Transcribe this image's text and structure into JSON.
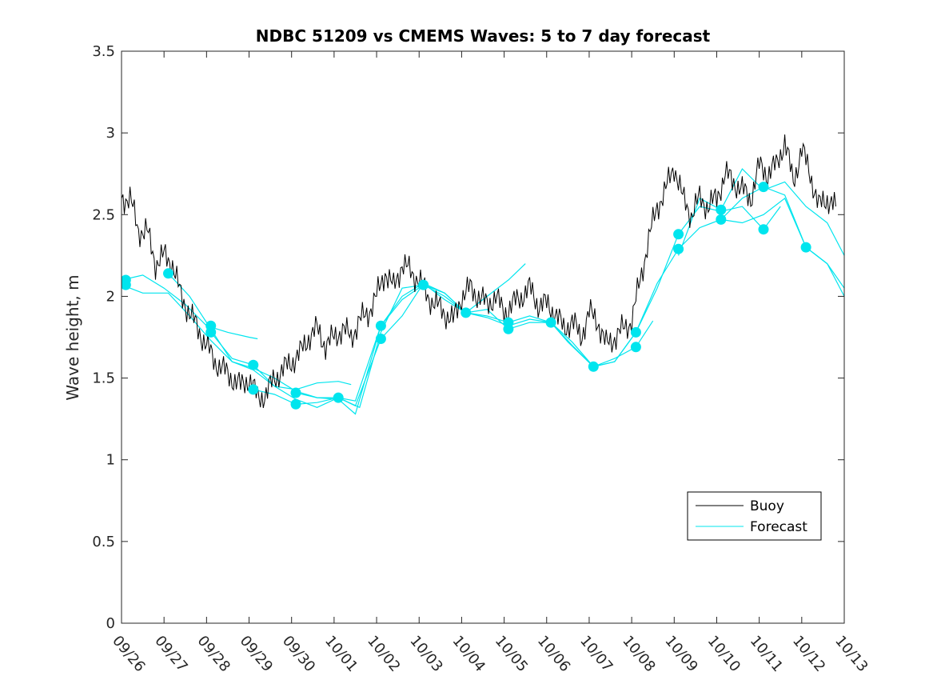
{
  "chart_data": {
    "type": "line",
    "title": "NDBC 51209 vs CMEMS Waves: 5 to 7 day forecast",
    "xlabel": "",
    "ylabel": "Wave height, m",
    "xlim": [
      0,
      17
    ],
    "ylim": [
      0,
      3.5
    ],
    "x_tick_labels": [
      "09/26",
      "09/27",
      "09/28",
      "09/29",
      "09/30",
      "10/01",
      "10/02",
      "10/03",
      "10/04",
      "10/05",
      "10/06",
      "10/07",
      "10/08",
      "10/09",
      "10/10",
      "10/11",
      "10/12",
      "10/13"
    ],
    "y_ticks": [
      0,
      0.5,
      1,
      1.5,
      2,
      2.5,
      3,
      3.5
    ],
    "y_tick_labels": [
      "0",
      "0.5",
      "1",
      "1.5",
      "2",
      "2.5",
      "3",
      "3.5"
    ],
    "legend": {
      "position": "lower-right",
      "entries": [
        {
          "label": "Buoy",
          "color": "#000000"
        },
        {
          "label": "Forecast",
          "color": "#00e5ee"
        }
      ]
    },
    "colors": {
      "buoy": "#000000",
      "forecast": "#00e5ee"
    },
    "buoy": {
      "x": [
        0,
        0.2,
        0.4,
        0.6,
        0.8,
        1,
        1.2,
        1.4,
        1.6,
        1.8,
        2,
        2.2,
        2.4,
        2.6,
        2.8,
        3,
        3.2,
        3.4,
        3.6,
        3.8,
        4,
        4.2,
        4.4,
        4.6,
        4.8,
        5,
        5.2,
        5.4,
        5.6,
        5.8,
        6,
        6.2,
        6.4,
        6.6,
        6.8,
        7,
        7.2,
        7.4,
        7.6,
        7.8,
        8,
        8.2,
        8.4,
        8.6,
        8.8,
        9,
        9.2,
        9.4,
        9.6,
        9.8,
        10,
        10.2,
        10.4,
        10.6,
        10.8,
        11,
        11.2,
        11.4,
        11.6,
        11.8,
        12,
        12.2,
        12.4,
        12.6,
        12.8,
        13,
        13.2,
        13.4,
        13.6,
        13.8,
        14,
        14.2,
        14.4,
        14.6,
        14.8,
        15,
        15.2,
        15.4,
        15.6,
        15.8,
        16,
        16.2,
        16.4,
        16.6,
        16.8
      ],
      "y": [
        2.6,
        2.6,
        2.4,
        2.4,
        2.2,
        2.25,
        2.2,
        2.0,
        1.9,
        1.8,
        1.7,
        1.6,
        1.55,
        1.5,
        1.45,
        1.5,
        1.38,
        1.4,
        1.5,
        1.55,
        1.6,
        1.65,
        1.75,
        1.8,
        1.7,
        1.75,
        1.8,
        1.75,
        1.85,
        1.9,
        2.0,
        2.15,
        2.05,
        2.2,
        2.15,
        2.1,
        2.0,
        1.95,
        1.9,
        1.85,
        2.0,
        2.05,
        2.0,
        1.95,
        2.0,
        1.9,
        1.95,
        2.0,
        2.05,
        1.95,
        1.95,
        1.9,
        1.8,
        1.85,
        1.75,
        1.9,
        1.85,
        1.7,
        1.75,
        1.8,
        1.85,
        2.1,
        2.35,
        2.55,
        2.65,
        2.8,
        2.6,
        2.5,
        2.6,
        2.55,
        2.6,
        2.75,
        2.7,
        2.65,
        2.6,
        2.8,
        2.75,
        2.8,
        2.95,
        2.7,
        2.9,
        2.75,
        2.55,
        2.6,
        2.55
      ]
    },
    "forecast_series": [
      {
        "x": [
          0,
          0.5,
          1,
          1.5,
          2,
          2.5,
          3,
          3.2
        ],
        "y": [
          2.1,
          2.13,
          2.05,
          1.95,
          1.82,
          1.78,
          1.75,
          1.74
        ]
      },
      {
        "x": [
          0,
          0.5,
          1.1,
          1.6,
          2.1,
          2.6,
          3.1,
          3.6,
          4.1,
          4.6,
          5.1,
          5.4
        ],
        "y": [
          2.07,
          2.02,
          2.02,
          1.88,
          1.73,
          1.6,
          1.55,
          1.45,
          1.43,
          1.47,
          1.48,
          1.46
        ]
      },
      {
        "x": [
          1.1,
          1.6,
          2.1,
          2.6,
          3.1,
          3.6,
          4.1,
          4.6,
          5.1,
          5.5,
          6.1,
          6.6,
          7.1,
          7.6,
          8.1,
          8.6,
          9.1,
          9.5
        ],
        "y": [
          2.14,
          2.0,
          1.8,
          1.6,
          1.56,
          1.5,
          1.42,
          1.38,
          1.37,
          1.28,
          1.82,
          1.98,
          2.07,
          2.02,
          1.9,
          2.0,
          2.1,
          2.2
        ]
      },
      {
        "x": [
          2.1,
          2.6,
          3.1,
          3.6,
          4.1,
          4.6,
          5.1,
          5.5,
          6.1,
          6.6,
          7.1,
          7.6,
          8.1,
          8.6,
          9.1,
          9.6,
          10.1,
          10.5,
          11.1,
          11.6,
          12.1,
          12.5
        ],
        "y": [
          1.78,
          1.62,
          1.58,
          1.45,
          1.37,
          1.32,
          1.38,
          1.33,
          1.74,
          1.88,
          2.08,
          1.98,
          1.9,
          1.88,
          1.84,
          1.88,
          1.84,
          1.72,
          1.57,
          1.62,
          1.69,
          1.85
        ]
      },
      {
        "x": [
          3.1,
          3.6,
          4.1,
          4.6,
          5.1,
          5.5,
          6.1,
          6.6,
          7.1,
          7.6,
          8.1,
          8.6,
          9.1,
          9.6,
          10.1,
          10.6,
          11.1,
          11.6,
          12.1,
          12.6,
          13.1,
          13.6,
          14.1,
          14.6,
          15.1,
          15.5
        ],
        "y": [
          1.43,
          1.4,
          1.34,
          1.35,
          1.38,
          1.36,
          1.82,
          2.0,
          2.08,
          2.02,
          1.9,
          1.87,
          1.82,
          1.86,
          1.84,
          1.72,
          1.57,
          1.6,
          1.78,
          2.05,
          2.38,
          2.55,
          2.52,
          2.55,
          2.41,
          2.55
        ]
      },
      {
        "x": [
          4.1,
          4.6,
          5.1,
          5.6,
          6.1,
          6.6,
          7.1,
          7.6,
          8.1,
          8.6,
          9.1,
          9.6,
          10.1,
          10.6,
          11.1,
          11.6,
          12.1,
          12.6,
          13.1,
          13.6,
          14.1,
          14.6,
          15.1,
          15.6,
          16.1,
          16.6,
          17
        ],
        "y": [
          1.41,
          1.38,
          1.38,
          1.32,
          1.78,
          2.05,
          2.07,
          2.0,
          1.9,
          1.92,
          1.8,
          1.84,
          1.84,
          1.7,
          1.57,
          1.6,
          1.78,
          2.08,
          2.29,
          2.42,
          2.47,
          2.6,
          2.67,
          2.62,
          2.3,
          2.2,
          2.05
        ]
      },
      {
        "x": [
          13.1,
          13.6,
          14.1,
          14.6,
          15.1,
          15.6,
          16.1,
          16.6,
          17
        ],
        "y": [
          2.25,
          2.6,
          2.53,
          2.78,
          2.65,
          2.7,
          2.55,
          2.45,
          2.25
        ]
      },
      {
        "x": [
          14.1,
          14.6,
          15.1,
          15.6,
          16.1,
          16.6,
          17
        ],
        "y": [
          2.47,
          2.45,
          2.5,
          2.6,
          2.3,
          2.2,
          2.0
        ]
      }
    ],
    "forecast_markers": {
      "x": [
        0.1,
        0.1,
        1.1,
        2.1,
        2.1,
        3.1,
        3.1,
        4.1,
        4.1,
        5.1,
        6.1,
        6.1,
        7.1,
        8.1,
        9.1,
        9.1,
        10.1,
        11.1,
        12.1,
        12.1,
        13.1,
        13.1,
        14.1,
        14.1,
        15.1,
        15.1,
        16.1
      ],
      "y": [
        2.1,
        2.07,
        2.14,
        1.82,
        1.78,
        1.58,
        1.43,
        1.41,
        1.34,
        1.38,
        1.82,
        1.74,
        2.07,
        1.9,
        1.84,
        1.8,
        1.84,
        1.57,
        1.78,
        1.69,
        2.38,
        2.29,
        2.53,
        2.47,
        2.67,
        2.41,
        2.3
      ]
    }
  }
}
